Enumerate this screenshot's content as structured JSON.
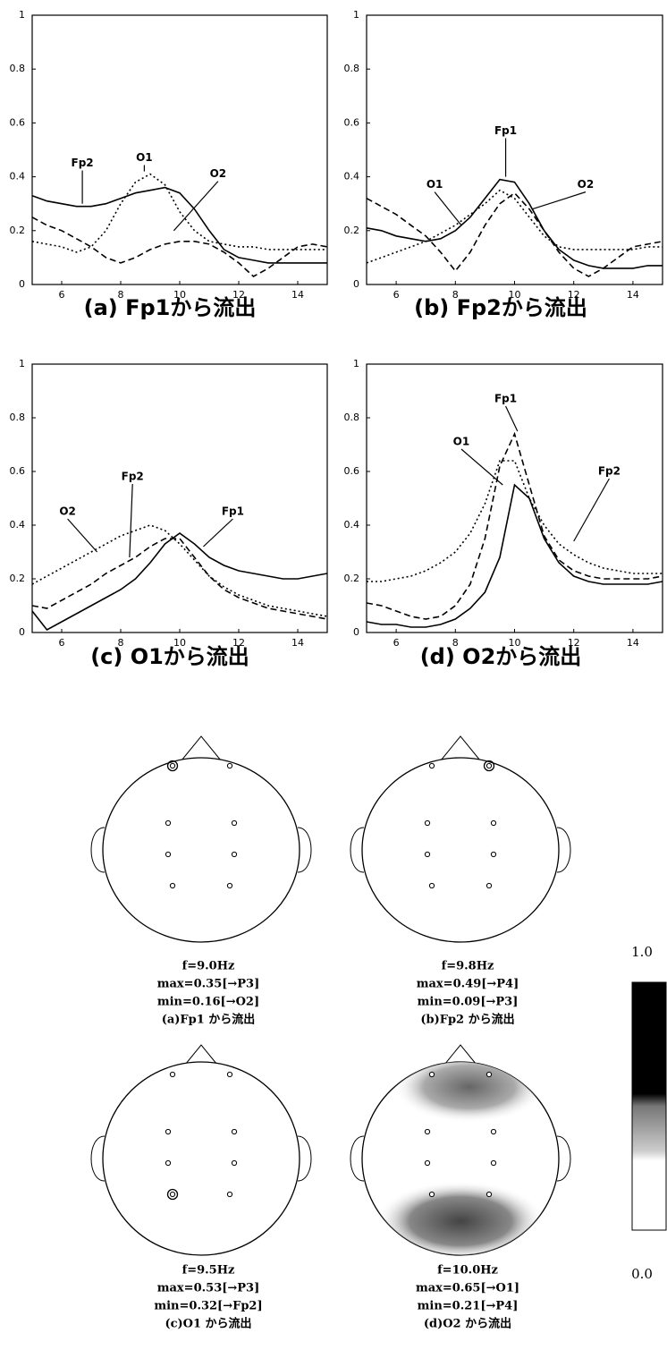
{
  "chart_data": [
    {
      "type": "line",
      "title": "(a) Fp1から流出",
      "x": [
        5,
        5.5,
        6,
        6.5,
        7,
        7.5,
        8,
        8.5,
        9,
        9.5,
        10,
        10.5,
        11,
        11.5,
        12,
        12.5,
        13,
        13.5,
        14,
        14.5,
        15
      ],
      "xlim": [
        5,
        15
      ],
      "xticks": [
        6,
        8,
        10,
        12,
        14
      ],
      "ylim": [
        0,
        1
      ],
      "yticks": [
        0,
        0.2,
        0.4,
        0.6,
        0.8,
        1
      ],
      "series": [
        {
          "name": "Fp2",
          "color": "#000",
          "dash": "solid",
          "values": [
            0.33,
            0.31,
            0.3,
            0.29,
            0.29,
            0.3,
            0.32,
            0.34,
            0.35,
            0.36,
            0.34,
            0.28,
            0.2,
            0.13,
            0.1,
            0.09,
            0.08,
            0.08,
            0.08,
            0.08,
            0.08
          ]
        },
        {
          "name": "O1",
          "color": "#000",
          "dash": "dotted",
          "values": [
            0.16,
            0.15,
            0.14,
            0.12,
            0.14,
            0.2,
            0.3,
            0.38,
            0.41,
            0.37,
            0.27,
            0.2,
            0.16,
            0.15,
            0.14,
            0.14,
            0.13,
            0.13,
            0.13,
            0.13,
            0.13
          ]
        },
        {
          "name": "O2",
          "color": "#000",
          "dash": "dashed",
          "values": [
            0.25,
            0.22,
            0.2,
            0.17,
            0.14,
            0.1,
            0.08,
            0.1,
            0.13,
            0.15,
            0.16,
            0.16,
            0.15,
            0.12,
            0.08,
            0.03,
            0.06,
            0.1,
            0.14,
            0.15,
            0.14
          ]
        }
      ]
    },
    {
      "type": "line",
      "title": "(b) Fp2から流出",
      "x": [
        5,
        5.5,
        6,
        6.5,
        7,
        7.5,
        8,
        8.5,
        9,
        9.5,
        10,
        10.5,
        11,
        11.5,
        12,
        12.5,
        13,
        13.5,
        14,
        14.5,
        15
      ],
      "xlim": [
        5,
        15
      ],
      "xticks": [
        6,
        8,
        10,
        12,
        14
      ],
      "ylim": [
        0,
        1
      ],
      "yticks": [
        0,
        0.2,
        0.4,
        0.6,
        0.8,
        1
      ],
      "series": [
        {
          "name": "Fp1",
          "color": "#000",
          "dash": "solid",
          "values": [
            0.21,
            0.2,
            0.18,
            0.17,
            0.16,
            0.17,
            0.2,
            0.25,
            0.32,
            0.39,
            0.38,
            0.3,
            0.2,
            0.13,
            0.09,
            0.07,
            0.06,
            0.06,
            0.06,
            0.07,
            0.07
          ]
        },
        {
          "name": "O1",
          "color": "#000",
          "dash": "dotted",
          "values": [
            0.08,
            0.1,
            0.12,
            0.14,
            0.16,
            0.19,
            0.22,
            0.26,
            0.3,
            0.35,
            0.32,
            0.25,
            0.18,
            0.14,
            0.13,
            0.13,
            0.13,
            0.13,
            0.13,
            0.14,
            0.14
          ]
        },
        {
          "name": "O2",
          "color": "#000",
          "dash": "dashed",
          "values": [
            0.32,
            0.29,
            0.26,
            0.22,
            0.18,
            0.12,
            0.05,
            0.12,
            0.22,
            0.3,
            0.34,
            0.28,
            0.2,
            0.12,
            0.06,
            0.03,
            0.06,
            0.1,
            0.14,
            0.15,
            0.16
          ]
        }
      ]
    },
    {
      "type": "line",
      "title": "(c) O1から流出",
      "x": [
        5,
        5.5,
        6,
        6.5,
        7,
        7.5,
        8,
        8.5,
        9,
        9.5,
        10,
        10.5,
        11,
        11.5,
        12,
        12.5,
        13,
        13.5,
        14,
        14.5,
        15
      ],
      "xlim": [
        5,
        15
      ],
      "xticks": [
        6,
        8,
        10,
        12,
        14
      ],
      "ylim": [
        0,
        1
      ],
      "yticks": [
        0,
        0.2,
        0.4,
        0.6,
        0.8,
        1
      ],
      "series": [
        {
          "name": "Fp1",
          "color": "#000",
          "dash": "solid",
          "values": [
            0.08,
            0.01,
            0.04,
            0.07,
            0.1,
            0.13,
            0.16,
            0.2,
            0.26,
            0.33,
            0.37,
            0.33,
            0.28,
            0.25,
            0.23,
            0.22,
            0.21,
            0.2,
            0.2,
            0.21,
            0.22
          ]
        },
        {
          "name": "O2",
          "color": "#000",
          "dash": "dotted",
          "values": [
            0.18,
            0.21,
            0.24,
            0.27,
            0.3,
            0.33,
            0.36,
            0.38,
            0.4,
            0.38,
            0.33,
            0.27,
            0.21,
            0.17,
            0.14,
            0.12,
            0.1,
            0.09,
            0.08,
            0.07,
            0.06
          ]
        },
        {
          "name": "Fp2",
          "color": "#000",
          "dash": "dashed",
          "values": [
            0.1,
            0.09,
            0.12,
            0.15,
            0.18,
            0.22,
            0.25,
            0.28,
            0.32,
            0.35,
            0.35,
            0.28,
            0.21,
            0.16,
            0.13,
            0.11,
            0.09,
            0.08,
            0.07,
            0.06,
            0.05
          ]
        }
      ]
    },
    {
      "type": "line",
      "title": "(d) O2から流出",
      "x": [
        5,
        5.5,
        6,
        6.5,
        7,
        7.5,
        8,
        8.5,
        9,
        9.5,
        10,
        10.5,
        11,
        11.5,
        12,
        12.5,
        13,
        13.5,
        14,
        14.5,
        15
      ],
      "xlim": [
        5,
        15
      ],
      "xticks": [
        6,
        8,
        10,
        12,
        14
      ],
      "ylim": [
        0,
        1
      ],
      "yticks": [
        0,
        0.2,
        0.4,
        0.6,
        0.8,
        1
      ],
      "series": [
        {
          "name": "O1",
          "color": "#000",
          "dash": "solid",
          "values": [
            0.04,
            0.03,
            0.03,
            0.02,
            0.02,
            0.03,
            0.05,
            0.09,
            0.15,
            0.28,
            0.55,
            0.5,
            0.35,
            0.26,
            0.21,
            0.19,
            0.18,
            0.18,
            0.18,
            0.18,
            0.19
          ]
        },
        {
          "name": "Fp1",
          "color": "#000",
          "dash": "dashed",
          "values": [
            0.11,
            0.1,
            0.08,
            0.06,
            0.05,
            0.06,
            0.1,
            0.18,
            0.35,
            0.62,
            0.74,
            0.55,
            0.36,
            0.27,
            0.23,
            0.21,
            0.2,
            0.2,
            0.2,
            0.2,
            0.21
          ]
        },
        {
          "name": "Fp2",
          "color": "#000",
          "dash": "dotted",
          "values": [
            0.19,
            0.19,
            0.2,
            0.21,
            0.23,
            0.26,
            0.3,
            0.37,
            0.48,
            0.64,
            0.64,
            0.5,
            0.4,
            0.33,
            0.29,
            0.26,
            0.24,
            0.23,
            0.22,
            0.22,
            0.22
          ]
        }
      ]
    }
  ],
  "head_maps": [
    {
      "frequency": "f=9.0Hz",
      "max": "max=0.35[→P3]",
      "min": "min=0.16[→O2]",
      "caption": "(a)Fp1 から流出"
    },
    {
      "frequency": "f=9.8Hz",
      "max": "max=0.49[→P4]",
      "min": "min=0.09[→P3]",
      "caption": "(b)Fp2 から流出"
    },
    {
      "frequency": "f=9.5Hz",
      "max": "max=0.53[→P3]",
      "min": "min=0.32[→Fp2]",
      "caption": "(c)O1 から流出"
    },
    {
      "frequency": "f=10.0Hz",
      "max": "max=0.65[→O1]",
      "min": "min=0.21[→P4]",
      "caption": "(d)O2 から流出"
    }
  ],
  "colorbar": {
    "ticks": [
      {
        "value": 1,
        "label": "1.0"
      },
      {
        "value": 0,
        "label": "0.0"
      }
    ]
  }
}
